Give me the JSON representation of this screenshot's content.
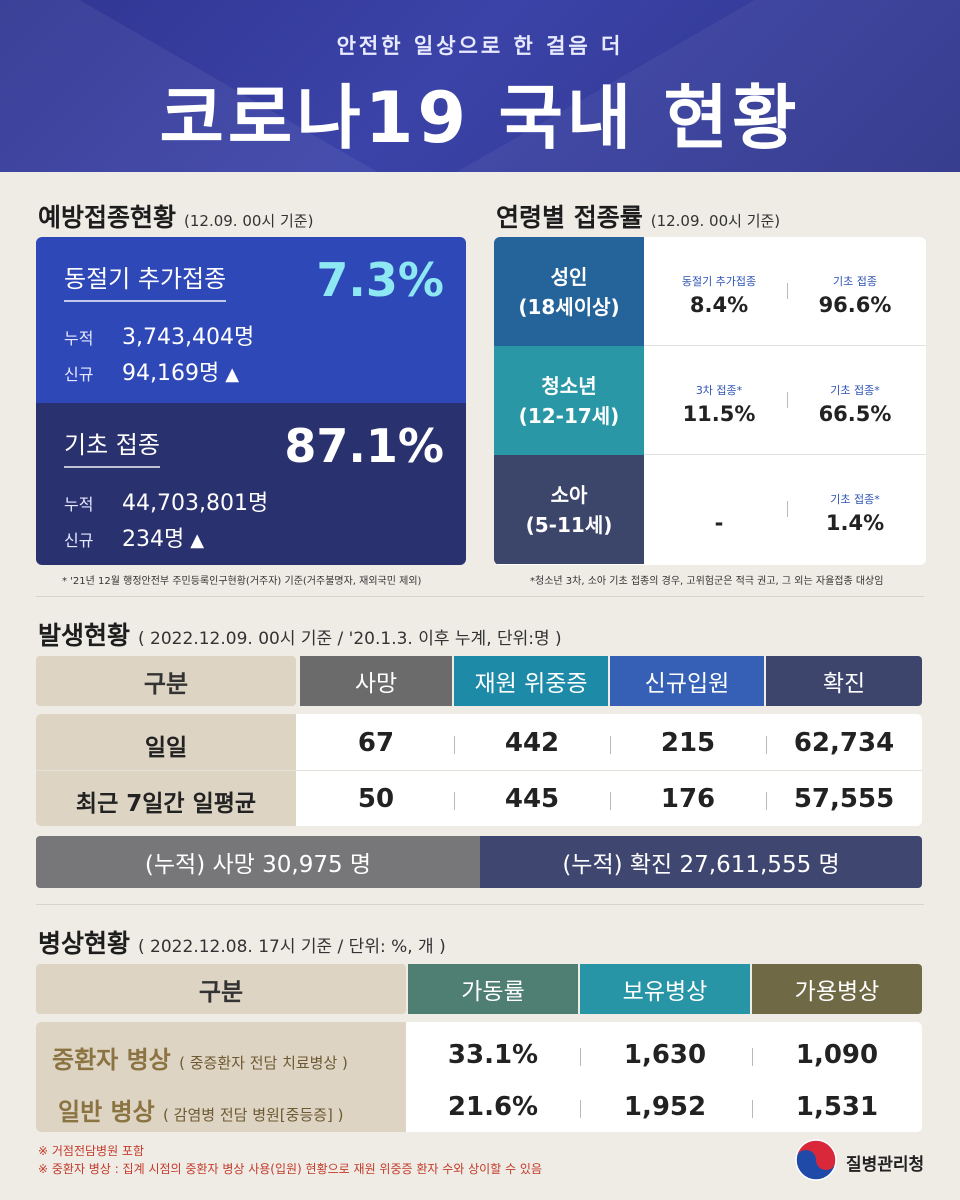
{
  "header": {
    "subtitle": "안전한 일상으로 한 걸음 더",
    "title": "코로나19 국내 현황"
  },
  "vaccination": {
    "title": "예방접종현황",
    "basis": "(12.09. 00시 기준)",
    "booster": {
      "label": "동절기 추가접종",
      "percent": "7.3%",
      "cumulative_key": "누적",
      "cumulative": "3,743,404명",
      "new_key": "신규",
      "new": "94,169명",
      "arrow": "▲"
    },
    "basic": {
      "label": "기초 접종",
      "percent": "87.1%",
      "cumulative_key": "누적",
      "cumulative": "44,703,801명",
      "new_key": "신규",
      "new": "234명",
      "arrow": "▲"
    },
    "footnote": "* '21년 12월 행정안전부 주민등록인구현황(거주자) 기준(거주불명자, 재외국민 제외)"
  },
  "age": {
    "title": "연령별 접종률",
    "basis": "(12.09. 00시 기준)",
    "rows": [
      {
        "head1": "성인",
        "head2": "(18세이상)",
        "c1_label": "동절기 추가접종",
        "c1_value": "8.4%",
        "c2_label": "기초 접종",
        "c2_value": "96.6%"
      },
      {
        "head1": "청소년",
        "head2": "(12-17세)",
        "c1_label": "3차 접종*",
        "c1_value": "11.5%",
        "c2_label": "기초 접종*",
        "c2_value": "66.5%"
      },
      {
        "head1": "소아",
        "head2": "(5-11세)",
        "c1_label": "",
        "c1_value": "-",
        "c2_label": "기초 접종*",
        "c2_value": "1.4%"
      }
    ],
    "footnote": "*청소년 3차, 소아 기초 접종의 경우, 고위험군은 적극 권고, 그 외는 자율접종 대상임",
    "colors": {
      "adult": "#25639b",
      "teen": "#2a97a6",
      "child": "#3c466a"
    }
  },
  "incidence": {
    "title": "발생현황",
    "basis": "( 2022.12.09. 00시 기준 / '20.1.3. 이후 누계, 단위:명 )",
    "headers": [
      "구분",
      "사망",
      "재원 위중증",
      "신규입원",
      "확진"
    ],
    "rows": [
      {
        "label": "일일",
        "values": [
          "67",
          "442",
          "215",
          "62,734"
        ]
      },
      {
        "label": "최근 7일간 일평균",
        "values": [
          "50",
          "445",
          "176",
          "57,555"
        ]
      }
    ],
    "cumulative_death": "(누적) 사망  30,975 명",
    "cumulative_confirmed": "(누적) 확진  27,611,555 명",
    "colors": {
      "death": "#6b6b6b",
      "icu": "#1d8aa8",
      "admit": "#3560b5",
      "confirmed": "#3d456d"
    }
  },
  "beds": {
    "title": "병상현황",
    "basis": "( 2022.12.08. 17시 기준 / 단위: %, 개 )",
    "headers": [
      "구분",
      "가동률",
      "보유병상",
      "가용병상"
    ],
    "rows": [
      {
        "label": "중환자 병상",
        "sub": "( 중증환자 전담 치료병상 )",
        "values": [
          "33.1%",
          "1,630",
          "1,090"
        ]
      },
      {
        "label": "일반 병상",
        "sub": "( 감염병 전담 병원[중등증] )",
        "values": [
          "21.6%",
          "1,952",
          "1,531"
        ]
      }
    ],
    "colors": {
      "rate": "#4e7f72",
      "owned": "#2795a6",
      "available": "#6f6a45"
    }
  },
  "notes": [
    "※ 거점전담병원 포함",
    "※ 중환자 병상 : 집계 시점의 중환자 병상 사용(입원) 현황으로 재원 위중증 환자 수와 상이할 수 있음"
  ],
  "agency": "질병관리청"
}
